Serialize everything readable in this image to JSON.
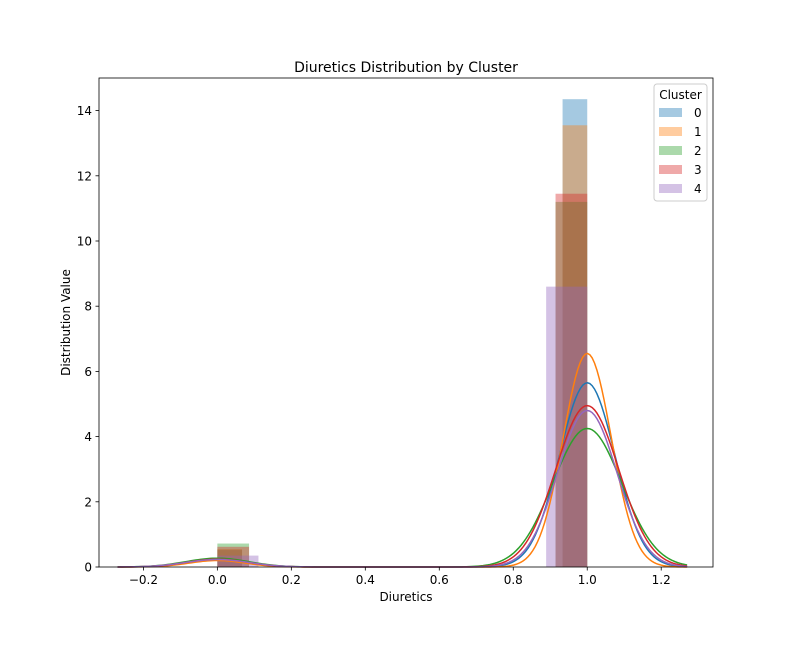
{
  "chart_data": {
    "type": "histogram-kde",
    "title": "Diuretics Distribution by Cluster",
    "xlabel": "Diuretics",
    "ylabel": "Distribution Value",
    "xlim": [
      -0.32,
      1.34
    ],
    "ylim": [
      0,
      15
    ],
    "xticks": [
      -0.2,
      0.0,
      0.2,
      0.4,
      0.6,
      0.8,
      1.0,
      1.2
    ],
    "xtick_labels": [
      "−0.2",
      "0.0",
      "0.2",
      "0.4",
      "0.6",
      "0.8",
      "1.0",
      "1.2"
    ],
    "yticks": [
      0,
      2,
      4,
      6,
      8,
      10,
      12,
      14
    ],
    "ytick_labels": [
      "0",
      "2",
      "4",
      "6",
      "8",
      "10",
      "12",
      "14"
    ],
    "grid": false,
    "legend": {
      "title": "Cluster",
      "placement": "top-right"
    },
    "series": [
      {
        "name": "0",
        "color": "#1f77b4",
        "bars": [
          {
            "x0": 0.0,
            "x1": 0.0667,
            "y": 0.52
          },
          {
            "x0": 0.9333,
            "x1": 1.0,
            "y": 14.35
          }
        ],
        "kde": {
          "peak_x": 1.0,
          "peak_y": 5.65,
          "sigma": 0.075,
          "low_peak_x": 0.0,
          "low_peak_y": 0.22,
          "low_sigma": 0.08
        }
      },
      {
        "name": "1",
        "color": "#ff7f0e",
        "bars": [
          {
            "x0": 0.0,
            "x1": 0.0667,
            "y": 0.55
          },
          {
            "x0": 0.9333,
            "x1": 1.0,
            "y": 13.55
          }
        ],
        "kde": {
          "peak_x": 1.0,
          "peak_y": 6.55,
          "sigma": 0.065,
          "low_peak_x": 0.0,
          "low_peak_y": 0.2,
          "low_sigma": 0.075
        }
      },
      {
        "name": "2",
        "color": "#2ca02c",
        "bars": [
          {
            "x0": 0.0,
            "x1": 0.0857,
            "y": 0.72
          },
          {
            "x0": 0.9143,
            "x1": 1.0,
            "y": 11.2
          }
        ],
        "kde": {
          "peak_x": 1.0,
          "peak_y": 4.25,
          "sigma": 0.093,
          "low_peak_x": 0.0,
          "low_peak_y": 0.27,
          "low_sigma": 0.085
        }
      },
      {
        "name": "3",
        "color": "#d62728",
        "bars": [
          {
            "x0": 0.0,
            "x1": 0.0857,
            "y": 0.62
          },
          {
            "x0": 0.9143,
            "x1": 1.0,
            "y": 11.45
          }
        ],
        "kde": {
          "peak_x": 1.0,
          "peak_y": 4.95,
          "sigma": 0.085,
          "low_peak_x": 0.0,
          "low_peak_y": 0.24,
          "low_sigma": 0.082
        }
      },
      {
        "name": "4",
        "color": "#9467bd",
        "bars": [
          {
            "x0": 0.0,
            "x1": 0.1111,
            "y": 0.35
          },
          {
            "x0": 0.8889,
            "x1": 1.0,
            "y": 8.6
          }
        ],
        "kde": {
          "peak_x": 1.0,
          "peak_y": 4.8,
          "sigma": 0.08,
          "low_peak_x": 0.0,
          "low_peak_y": 0.23,
          "low_sigma": 0.085
        }
      }
    ]
  }
}
